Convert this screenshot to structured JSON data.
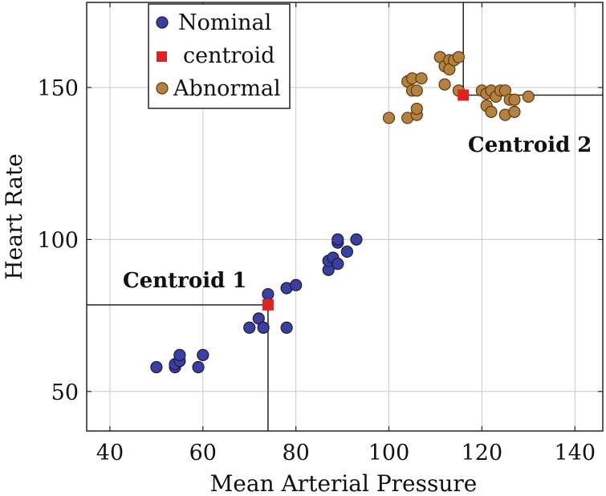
{
  "chart_data": {
    "type": "scatter",
    "title": "",
    "xlabel": "Mean Arterial Pressure",
    "ylabel": "Heart Rate",
    "xlim": [
      35,
      146
    ],
    "ylim": [
      37,
      178
    ],
    "xticks": [
      40,
      60,
      80,
      100,
      120,
      140
    ],
    "yticks": [
      50,
      100,
      150
    ],
    "grid": true,
    "legend_position": "top-left",
    "series": [
      {
        "name": "Nominal",
        "marker": "circle",
        "color": "#3b3fa0",
        "points": [
          [
            50,
            58
          ],
          [
            54,
            58
          ],
          [
            54,
            59
          ],
          [
            55,
            60
          ],
          [
            55,
            62
          ],
          [
            59,
            58
          ],
          [
            60,
            62
          ],
          [
            70,
            71
          ],
          [
            72,
            74
          ],
          [
            73,
            71
          ],
          [
            74,
            82
          ],
          [
            78,
            71
          ],
          [
            78,
            84
          ],
          [
            80,
            85
          ],
          [
            87,
            90
          ],
          [
            87,
            93
          ],
          [
            88,
            94
          ],
          [
            89,
            92
          ],
          [
            89,
            99
          ],
          [
            89,
            100
          ],
          [
            91,
            96
          ],
          [
            93,
            100
          ]
        ]
      },
      {
        "name": "centroid",
        "marker": "square",
        "color": "#dd2222",
        "points": [
          [
            74,
            78.5
          ],
          [
            116,
            147.5
          ]
        ]
      },
      {
        "name": "Abnormal",
        "marker": "circle",
        "color": "#b5813f",
        "points": [
          [
            100,
            140
          ],
          [
            104,
            140
          ],
          [
            104,
            152
          ],
          [
            105,
            149
          ],
          [
            105,
            153
          ],
          [
            106,
            141
          ],
          [
            106,
            143
          ],
          [
            106,
            149
          ],
          [
            107,
            153
          ],
          [
            111,
            160
          ],
          [
            112,
            151
          ],
          [
            112,
            157
          ],
          [
            113,
            159
          ],
          [
            113,
            156
          ],
          [
            114,
            159
          ],
          [
            115,
            149
          ],
          [
            115,
            160
          ],
          [
            120,
            149
          ],
          [
            121,
            148
          ],
          [
            121,
            144
          ],
          [
            122,
            142
          ],
          [
            122,
            149
          ],
          [
            123,
            147
          ],
          [
            124,
            149
          ],
          [
            125,
            141
          ],
          [
            125,
            149
          ],
          [
            126,
            146
          ],
          [
            127,
            142
          ],
          [
            127,
            146
          ],
          [
            130,
            147
          ]
        ]
      }
    ],
    "annotations": [
      {
        "text": "Centroid 1",
        "x": 74,
        "y": 78.5
      },
      {
        "text": "Centroid 2",
        "x": 116,
        "y": 147.5
      }
    ]
  }
}
